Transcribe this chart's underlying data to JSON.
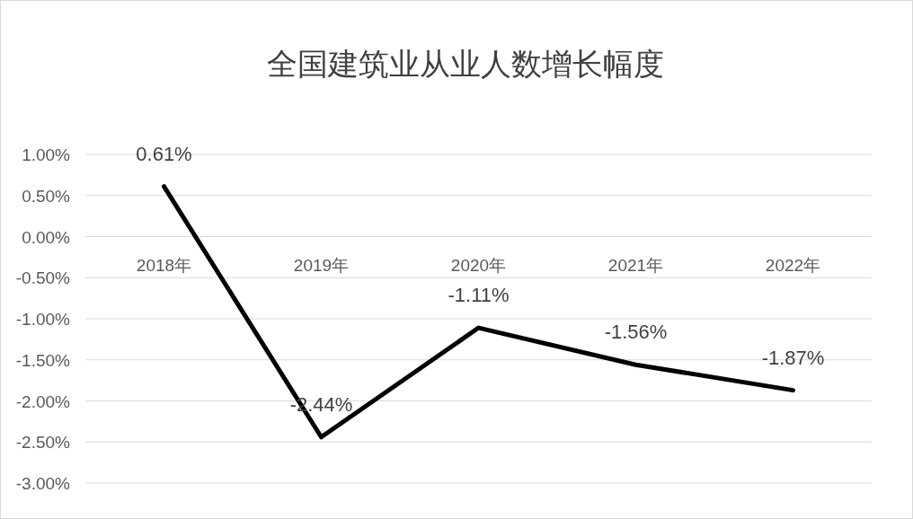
{
  "chart_data": {
    "type": "line",
    "title": "全国建筑业从业人数增长幅度",
    "categories": [
      "2018年",
      "2019年",
      "2020年",
      "2021年",
      "2022年"
    ],
    "values": [
      0.61,
      -2.44,
      -1.11,
      -1.56,
      -1.87
    ],
    "value_labels": [
      "0.61%",
      "-2.44%",
      "-1.11%",
      "-1.56%",
      "-1.87%"
    ],
    "color": "#000000",
    "ylim": [
      -3,
      1
    ],
    "yticks": [
      {
        "value": 1,
        "label": "1.00%"
      },
      {
        "value": 0.5,
        "label": "0.50%"
      },
      {
        "value": 0,
        "label": "0.00%"
      },
      {
        "value": -0.5,
        "label": "-0.50%"
      },
      {
        "value": -1,
        "label": "-1.00%"
      },
      {
        "value": -1.5,
        "label": "-1.50%"
      },
      {
        "value": -2,
        "label": "-2.00%"
      },
      {
        "value": -2.5,
        "label": "-2.50%"
      },
      {
        "value": -3,
        "label": "-3.00%"
      }
    ],
    "grid": "y"
  }
}
